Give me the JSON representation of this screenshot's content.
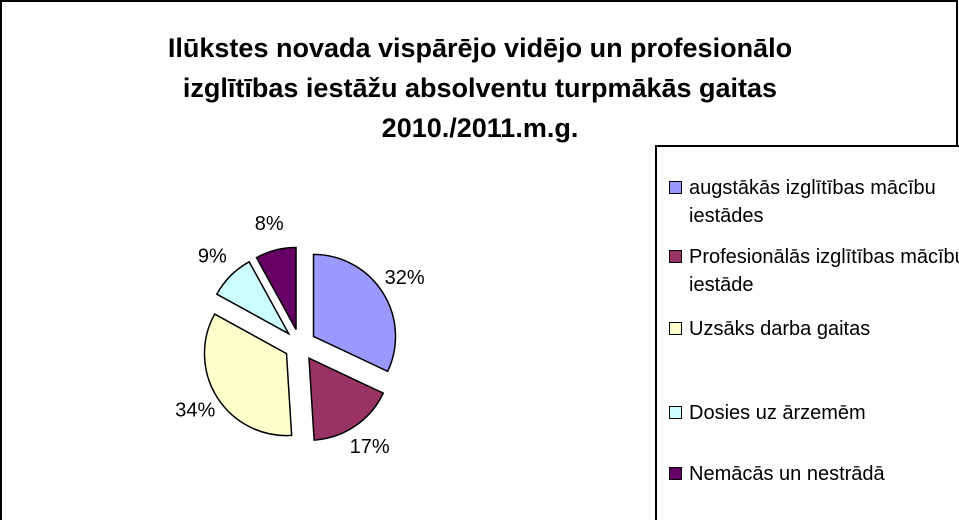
{
  "chart_data": {
    "type": "pie",
    "title": [
      "Ilūkstes novada vispārējo vidējo un profesionālo",
      "izglītības iestāžu absolventu turpmākās gaitas",
      "2010./2011.m.g."
    ],
    "categories": [
      "augstākās izglītības mācību iestādes",
      "Profesionālās izglītības mācību iestāde",
      "Uzsāks darba gaitas",
      "Dosies uz ārzemēm",
      "Nemācās un nestrādā"
    ],
    "values": [
      32,
      17,
      34,
      9,
      8
    ],
    "value_labels": [
      "32%",
      "17%",
      "34%",
      "9%",
      "8%"
    ],
    "colors": [
      "#9999ff",
      "#993366",
      "#ffffcc",
      "#ccffff",
      "#660066"
    ],
    "legend": "right"
  }
}
